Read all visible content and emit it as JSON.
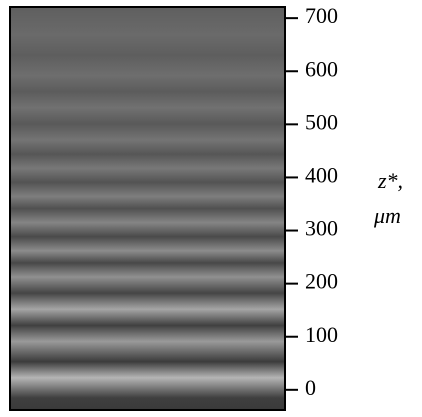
{
  "chart_data": {
    "type": "image",
    "ylabel": [
      "z*,",
      "μm"
    ],
    "ylim": [
      -38,
      721
    ],
    "yticks": [
      0,
      100,
      200,
      300,
      400,
      500,
      600,
      700
    ]
  }
}
